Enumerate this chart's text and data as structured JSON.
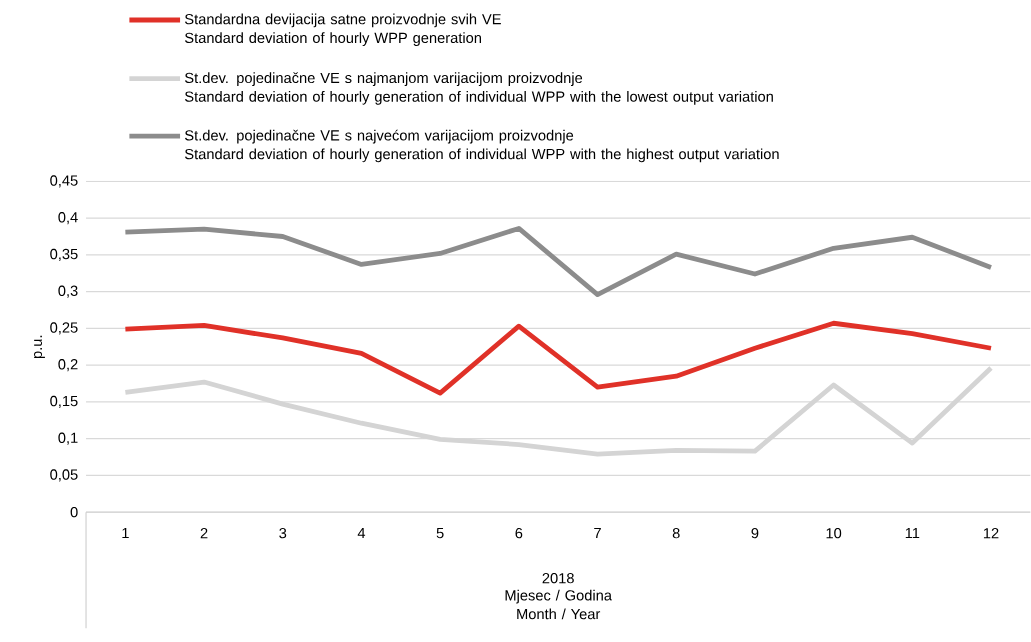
{
  "chart_data": {
    "type": "line",
    "categories": [
      "1",
      "2",
      "3",
      "4",
      "5",
      "6",
      "7",
      "8",
      "9",
      "10",
      "11",
      "12"
    ],
    "series": [
      {
        "name": "Standardna devijacija satne proizvodnje svih VE\nStandard deviation of hourly WPP generation",
        "color": "#e03128",
        "values": [
          0.249,
          0.254,
          0.237,
          0.216,
          0.162,
          0.253,
          0.17,
          0.185,
          0.223,
          0.257,
          0.243,
          0.223
        ]
      },
      {
        "name": "St.dev. pojedinačne VE s najmanjom varijacijom proizvodnje\nStandard deviation of hourly generation of individual WPP with the lowest output variation",
        "color": "#d4d4d4",
        "values": [
          0.163,
          0.177,
          0.147,
          0.121,
          0.099,
          0.092,
          0.079,
          0.084,
          0.083,
          0.173,
          0.094,
          0.196
        ]
      },
      {
        "name": "St.dev. pojedinačne VE s najvećom varijacijom proizvodnje\nStandard deviation of hourly generation of individual WPP with the highest output variation",
        "color": "#8c8c8c",
        "values": [
          0.381,
          0.385,
          0.375,
          0.337,
          0.352,
          0.386,
          0.296,
          0.351,
          0.324,
          0.359,
          0.374,
          0.333
        ]
      }
    ],
    "ylabel": "p.u.",
    "xlabel": "Mjesec / Godina\nMonth / Year",
    "annotations": [
      "2018"
    ],
    "ylim": [
      0,
      0.45
    ],
    "yticks": [
      0,
      {
        "value": 0.05,
        "label": "0,05"
      },
      {
        "value": 0.1,
        "label": "0,1"
      },
      {
        "value": 0.15,
        "label": "0,15"
      },
      {
        "value": 0.2,
        "label": "0,2"
      },
      {
        "value": 0.25,
        "label": "0,25"
      },
      {
        "value": 0.3,
        "label": "0,3"
      },
      {
        "value": 0.35,
        "label": "0,35"
      },
      {
        "value": 0.4,
        "label": "0,4"
      },
      {
        "value": 0.45,
        "label": "0,45"
      }
    ],
    "grid": "y",
    "legend": "top",
    "line_style": "solid",
    "marker": "none"
  }
}
